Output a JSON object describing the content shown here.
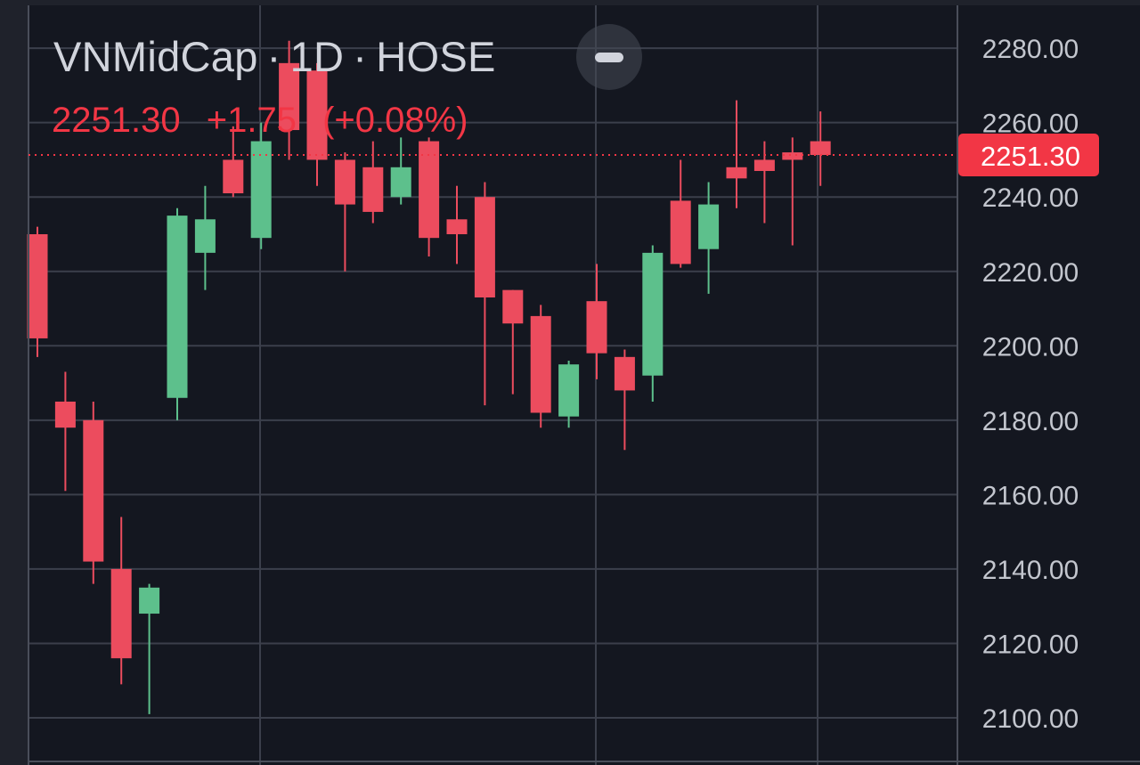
{
  "header": {
    "symbol": "VNMidCap",
    "separator": "·",
    "interval": "1D",
    "exchange": "HOSE",
    "last_price": "2251.30",
    "change": "+1.75",
    "change_percent": "(+0.08%)"
  },
  "price_tag": "2251.30",
  "colors": {
    "up": "#5dc08c",
    "down": "#ec4c5e",
    "background": "#141720",
    "grid": "#3b3f4b",
    "axis_text": "#c3c6ce",
    "last_price_line": "#f23645"
  },
  "chart_data": {
    "type": "candlestick",
    "ylim": [
      2095,
      2285
    ],
    "y_ticks": [
      "2100.00",
      "2120.00",
      "2140.00",
      "2160.00",
      "2180.00",
      "2200.00",
      "2220.00",
      "2240.00",
      "2260.00",
      "2280.00"
    ],
    "last_price": 2251.3,
    "candles": [
      {
        "o": 2230,
        "h": 2232,
        "l": 2197,
        "c": 2202
      },
      {
        "o": 2185,
        "h": 2193,
        "l": 2161,
        "c": 2178
      },
      {
        "o": 2180,
        "h": 2185,
        "l": 2136,
        "c": 2142
      },
      {
        "o": 2140,
        "h": 2154,
        "l": 2109,
        "c": 2116
      },
      {
        "o": 2128,
        "h": 2136,
        "l": 2101,
        "c": 2135
      },
      {
        "o": 2186,
        "h": 2237,
        "l": 2180,
        "c": 2235
      },
      {
        "o": 2225,
        "h": 2243,
        "l": 2215,
        "c": 2234
      },
      {
        "o": 2250,
        "h": 2259,
        "l": 2240,
        "c": 2241
      },
      {
        "o": 2229,
        "h": 2260,
        "l": 2226,
        "c": 2255
      },
      {
        "o": 2276,
        "h": 2282,
        "l": 2250,
        "c": 2258
      },
      {
        "o": 2274,
        "h": 2276,
        "l": 2243,
        "c": 2250
      },
      {
        "o": 2250,
        "h": 2252,
        "l": 2220,
        "c": 2238
      },
      {
        "o": 2248,
        "h": 2255,
        "l": 2233,
        "c": 2236
      },
      {
        "o": 2240,
        "h": 2256,
        "l": 2238,
        "c": 2248
      },
      {
        "o": 2255,
        "h": 2256,
        "l": 2224,
        "c": 2229
      },
      {
        "o": 2234,
        "h": 2243,
        "l": 2222,
        "c": 2230
      },
      {
        "o": 2240,
        "h": 2244,
        "l": 2184,
        "c": 2213
      },
      {
        "o": 2215,
        "h": 2215,
        "l": 2187,
        "c": 2206
      },
      {
        "o": 2208,
        "h": 2211,
        "l": 2178,
        "c": 2182
      },
      {
        "o": 2181,
        "h": 2196,
        "l": 2178,
        "c": 2195
      },
      {
        "o": 2212,
        "h": 2222,
        "l": 2191,
        "c": 2198
      },
      {
        "o": 2197,
        "h": 2199,
        "l": 2172,
        "c": 2188
      },
      {
        "o": 2192,
        "h": 2227,
        "l": 2185,
        "c": 2225
      },
      {
        "o": 2239,
        "h": 2250,
        "l": 2221,
        "c": 2222
      },
      {
        "o": 2226,
        "h": 2244,
        "l": 2214,
        "c": 2238
      },
      {
        "o": 2248,
        "h": 2266,
        "l": 2237,
        "c": 2245
      },
      {
        "o": 2250,
        "h": 2255,
        "l": 2233,
        "c": 2247
      },
      {
        "o": 2252,
        "h": 2256,
        "l": 2227,
        "c": 2250
      },
      {
        "o": 2255,
        "h": 2263,
        "l": 2243,
        "c": 2251.3
      }
    ]
  }
}
